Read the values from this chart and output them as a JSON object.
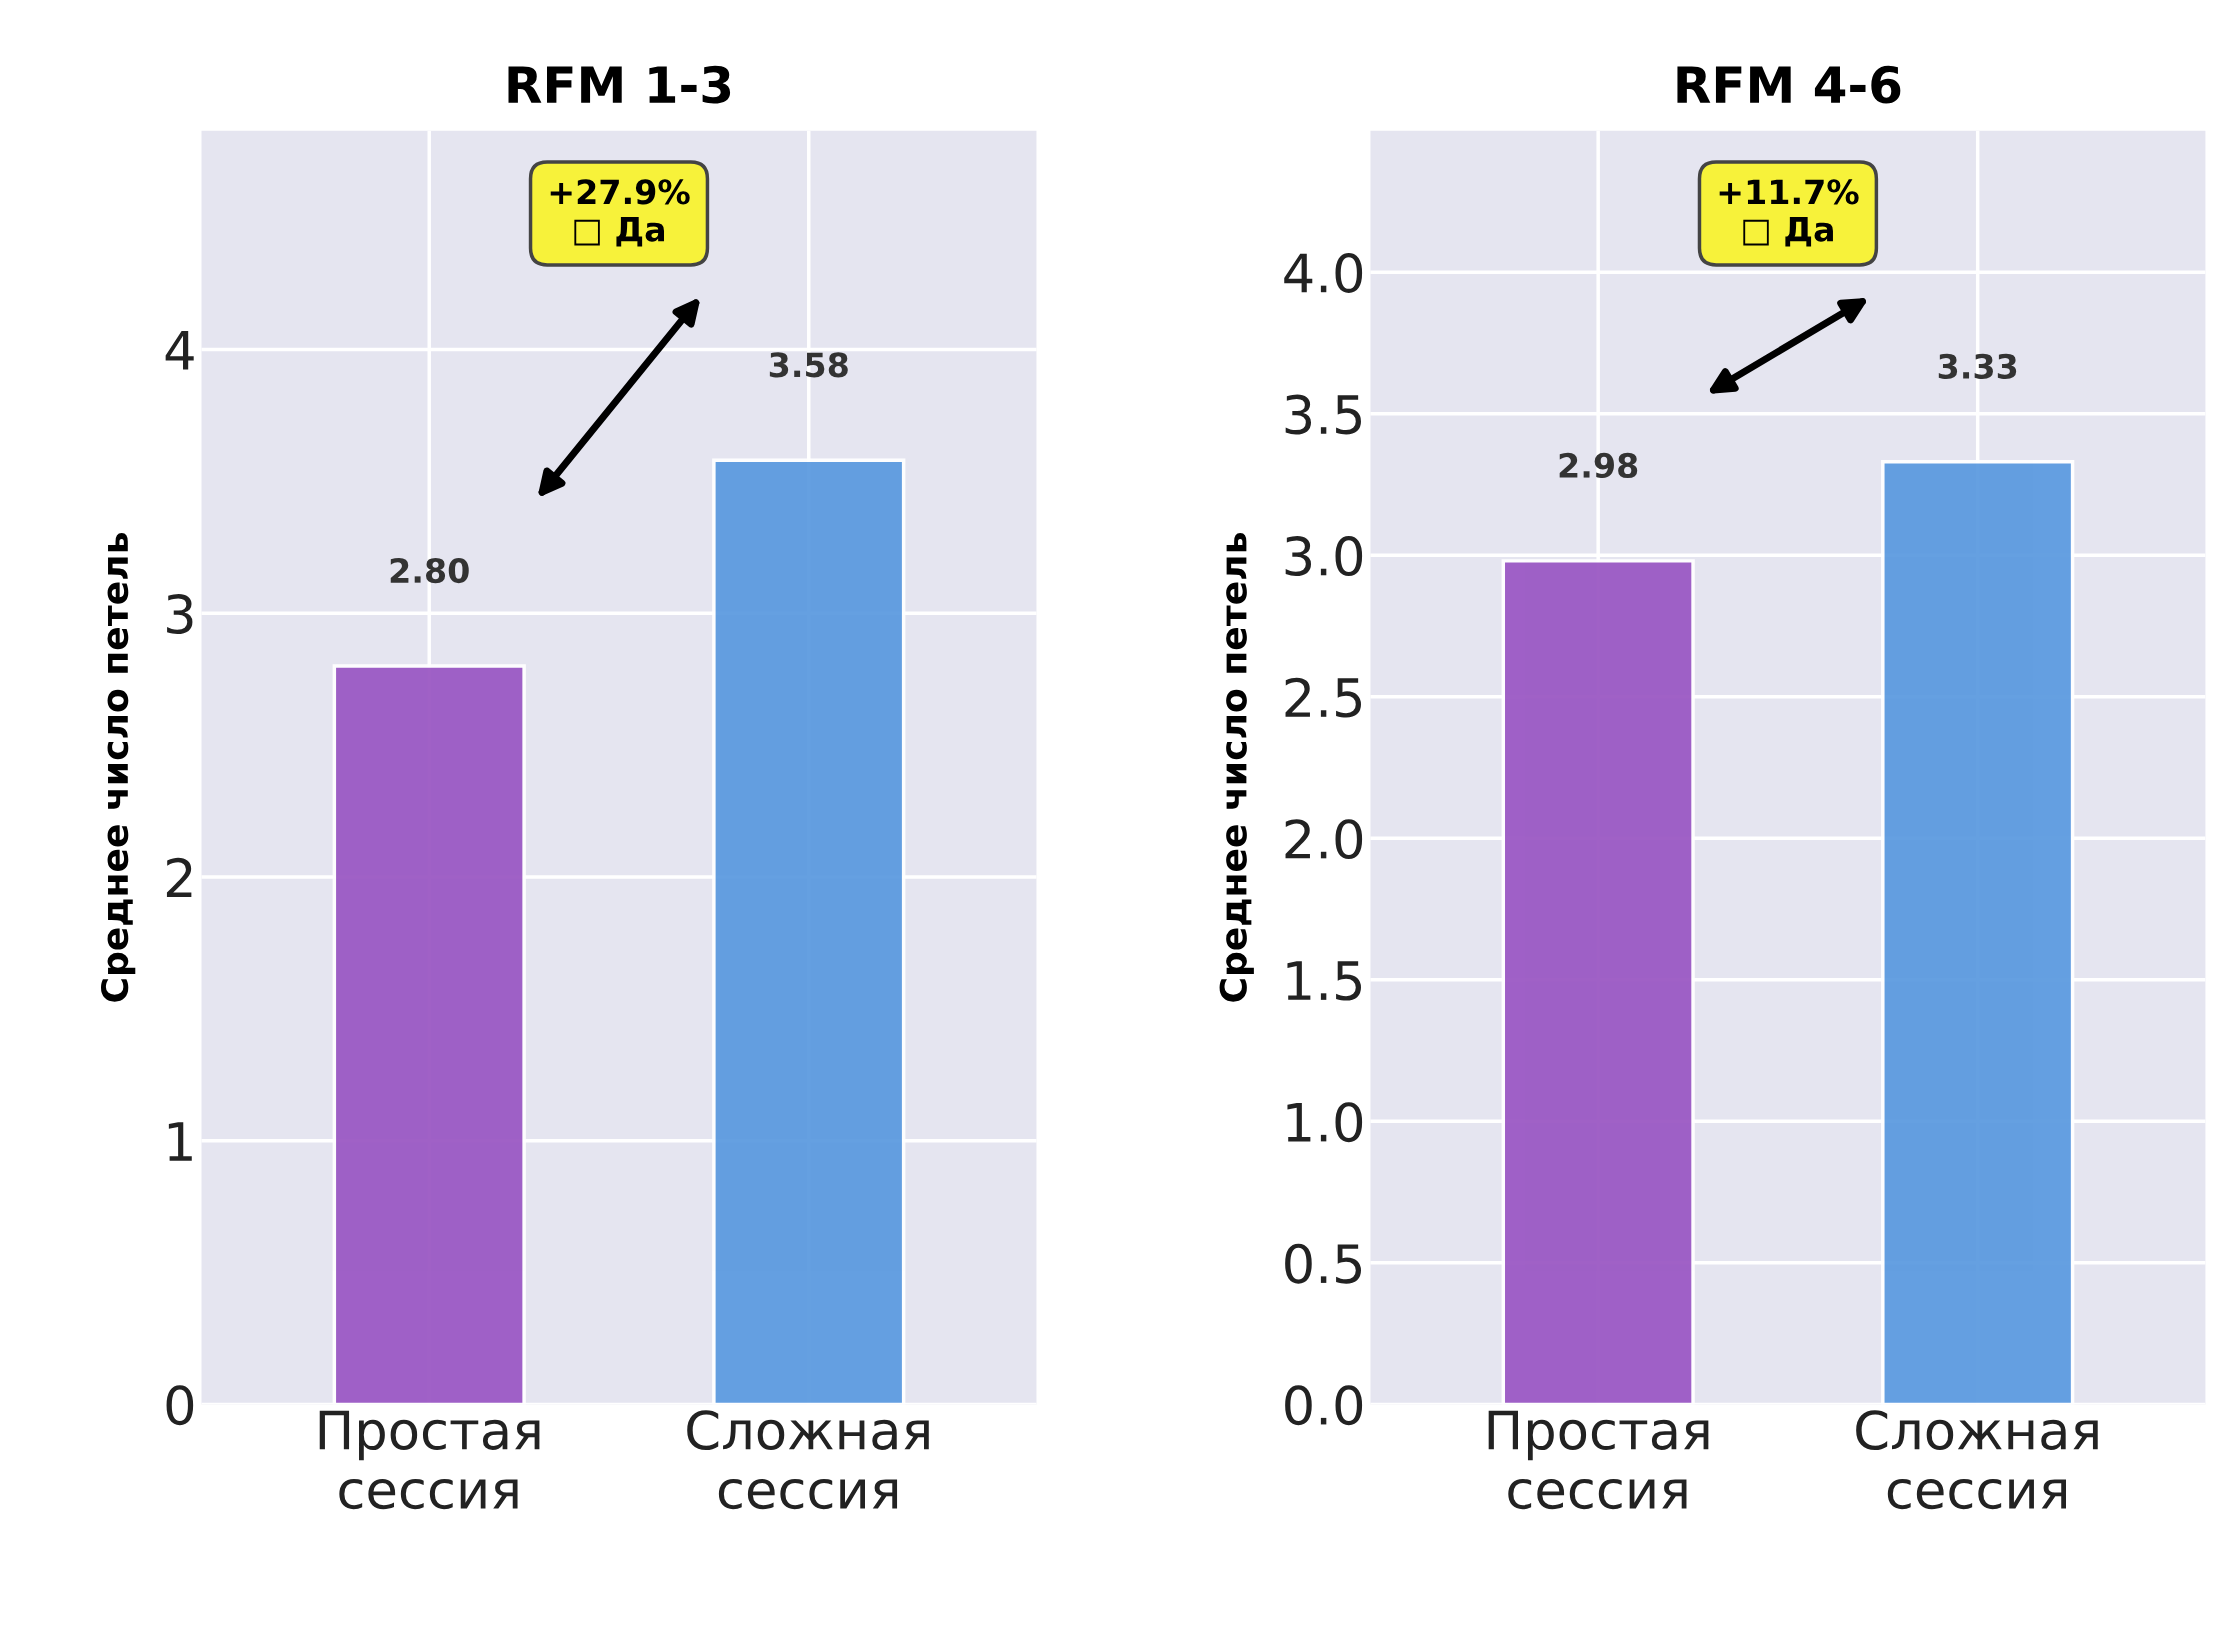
{
  "chart_data": [
    {
      "type": "bar",
      "title": "RFM 1-3",
      "ylabel": "Среднее число петель",
      "categories": [
        "Простая\nсессия",
        "Сложная\nсессия"
      ],
      "values": [
        2.8,
        3.58
      ],
      "colors": [
        "#9b59c4",
        "#5d9be0"
      ],
      "value_labels": [
        "2.80",
        "3.58"
      ],
      "ylim": [
        0,
        4.83
      ],
      "yticks": [
        0,
        1,
        2,
        3,
        4
      ],
      "grid": true,
      "annotations": [
        "+27.9%\n□ Да"
      ]
    },
    {
      "type": "bar",
      "title": "RFM 4-6",
      "ylabel": "Среднее число петель",
      "categories": [
        "Простая\nсессия",
        "Сложная\nсессия"
      ],
      "values": [
        2.98,
        3.33
      ],
      "colors": [
        "#9b59c4",
        "#5d9be0"
      ],
      "value_labels": [
        "2.98",
        "3.33"
      ],
      "ylim": [
        0,
        4.5
      ],
      "yticks": [
        {
          "value": 0,
          "label": "0.0"
        },
        {
          "value": 0.5,
          "label": "0.5"
        },
        {
          "value": 1,
          "label": "1.0"
        },
        {
          "value": 1.5,
          "label": "1.5"
        },
        {
          "value": 2,
          "label": "2.0"
        },
        {
          "value": 2.5,
          "label": "2.5"
        },
        {
          "value": 3,
          "label": "3.0"
        },
        {
          "value": 3.5,
          "label": "3.5"
        },
        {
          "value": 4,
          "label": "4.0"
        }
      ],
      "grid": true,
      "annotations": [
        "+11.7%\n□ Да"
      ]
    }
  ]
}
